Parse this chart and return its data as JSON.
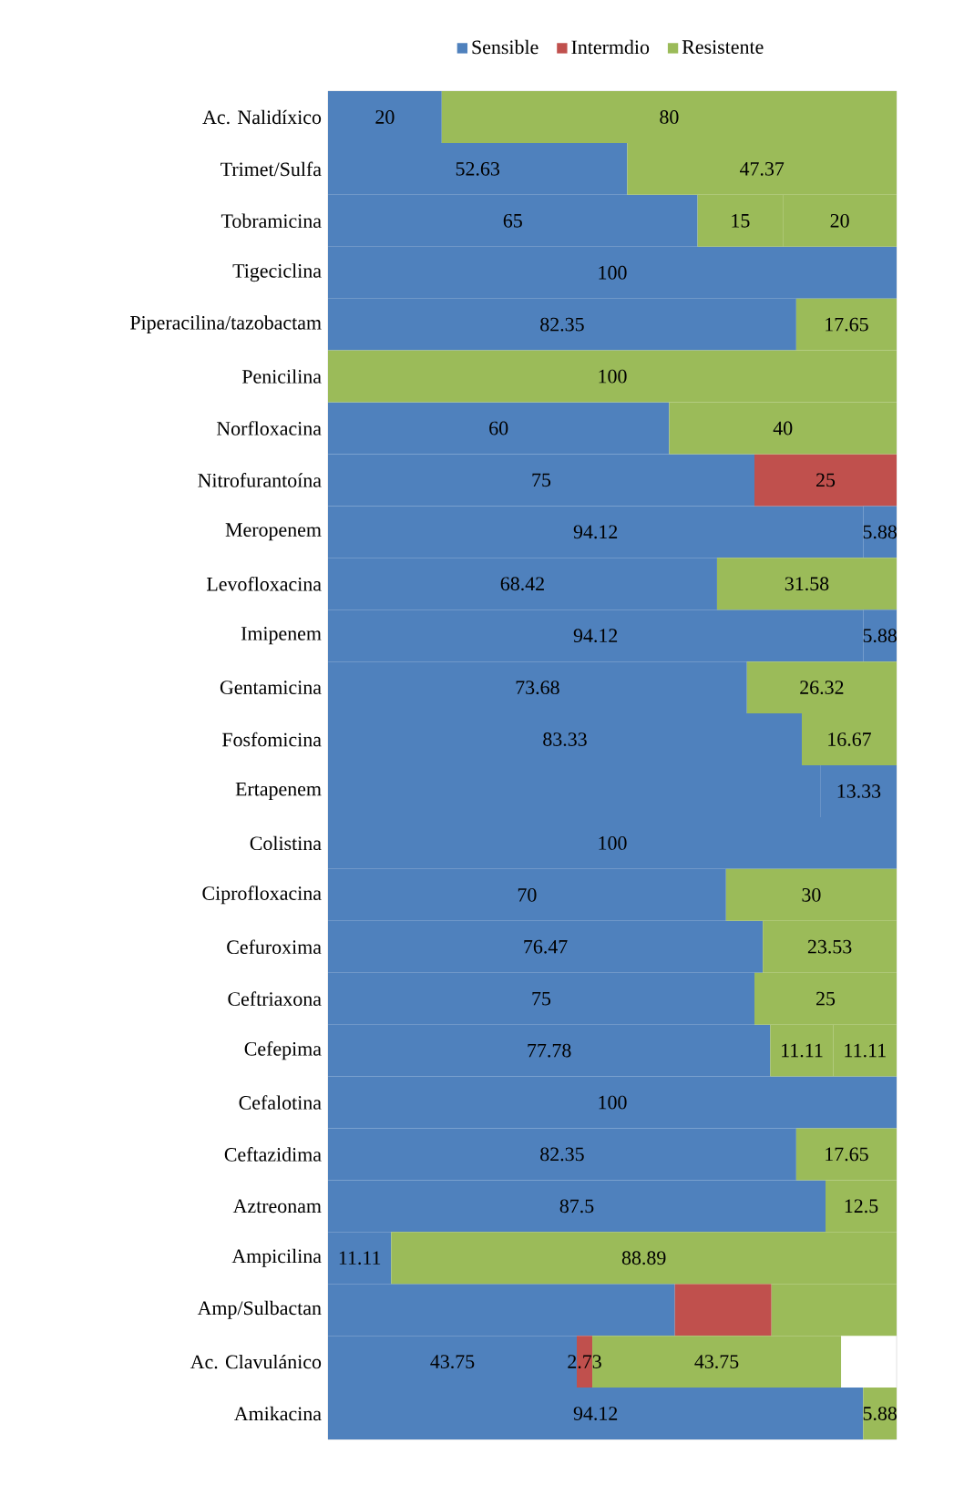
{
  "chart_data": {
    "type": "bar",
    "orientation": "horizontal",
    "stacked": true,
    "legend": "top",
    "categories": [
      "Ac. Nalidíxico",
      "Trimet/Sulfa",
      "Tobramicina",
      "Tigeciclina",
      "Piperacilina/tazobactam",
      "Penicilina",
      "Norfloxacina",
      "Nitrofurantoína",
      "Meropenem",
      "Levofloxacina",
      "Imipenem",
      "Gentamicina",
      "Fosfomicina",
      "Ertapenem",
      "Colistina",
      "Ciprofloxacina",
      "Cefuroxima",
      "Ceftriaxona",
      "Cefepima",
      "Cefalotina",
      "Ceftazidima",
      "Aztreonam",
      "Ampicilina",
      "Amp/Sulbactan",
      "Ac. Clavulánico",
      "Amikacina"
    ],
    "series": [
      {
        "name": "Sensible",
        "color": "#4f81bd",
        "values": [
          20,
          52.63,
          65,
          100,
          82.35,
          null,
          60,
          75,
          94.12,
          68.42,
          94.12,
          73.68,
          83.33,
          86.67,
          100,
          70,
          76.47,
          75,
          77.78,
          100,
          82.35,
          87.5,
          11.11,
          61,
          43.75,
          94.12
        ],
        "value_labels": [
          "20",
          "52.63",
          "65",
          "100",
          "82.35",
          null,
          "60",
          "75",
          "94.12",
          "68.42",
          "94.12",
          "73.68",
          "83.33",
          null,
          "100",
          "70",
          "76.47",
          "75",
          "77.78",
          "100",
          "82.35",
          "87.5",
          "11.11",
          null,
          "43.75",
          "94.12"
        ]
      },
      {
        "name": "Intermdio",
        "color": "#c0504d",
        "values": [
          null,
          null,
          15,
          null,
          null,
          null,
          null,
          25,
          null,
          null,
          null,
          null,
          null,
          null,
          null,
          null,
          null,
          null,
          11.11,
          null,
          null,
          null,
          null,
          17,
          2.73,
          null
        ],
        "value_labels": [
          null,
          null,
          "15",
          null,
          null,
          null,
          null,
          "25",
          null,
          null,
          null,
          null,
          null,
          null,
          null,
          null,
          null,
          null,
          "11.11",
          null,
          null,
          null,
          null,
          null,
          "2.73",
          null
        ],
        "colors": [
          "#c0504d",
          "#c0504d",
          "#9bbb59",
          "#c0504d",
          "#c0504d",
          "#c0504d",
          "#c0504d",
          "#c0504d",
          "#c0504d",
          "#c0504d",
          "#c0504d",
          "#c0504d",
          "#c0504d",
          "#c0504d",
          "#c0504d",
          "#c0504d",
          "#c0504d",
          "#c0504d",
          "#9bbb59",
          "#c0504d",
          "#c0504d",
          "#c0504d",
          "#c0504d",
          "#c0504d",
          "#c0504d",
          "#c0504d"
        ]
      },
      {
        "name": "Resistente",
        "color": "#9bbb59",
        "values": [
          80,
          47.37,
          20,
          null,
          17.65,
          100,
          40,
          null,
          5.88,
          31.58,
          5.88,
          26.32,
          16.67,
          13.33,
          null,
          30,
          23.53,
          25,
          11.11,
          null,
          17.65,
          12.5,
          88.89,
          22,
          43.75,
          5.88
        ],
        "value_labels": [
          "80",
          "47.37",
          "20",
          null,
          "17.65",
          "100",
          "40",
          null,
          "5.88",
          "31.58",
          "5.88",
          "26.32",
          "16.67",
          "13.33",
          null,
          "30",
          "23.53",
          "25",
          "11.11",
          null,
          "17.65",
          "12.5",
          "88.89",
          null,
          "43.75",
          "5.88"
        ],
        "colors": [
          "#9bbb59",
          "#9bbb59",
          "#9bbb59",
          "#9bbb59",
          "#9bbb59",
          "#9bbb59",
          "#9bbb59",
          "#9bbb59",
          "#4f81bd",
          "#9bbb59",
          "#4f81bd",
          "#9bbb59",
          "#9bbb59",
          "#4f81bd",
          "#9bbb59",
          "#9bbb59",
          "#9bbb59",
          "#9bbb59",
          "#9bbb59",
          "#9bbb59",
          "#9bbb59",
          "#9bbb59",
          "#9bbb59",
          "#9bbb59",
          "#9bbb59",
          "#9bbb59"
        ]
      }
    ]
  }
}
